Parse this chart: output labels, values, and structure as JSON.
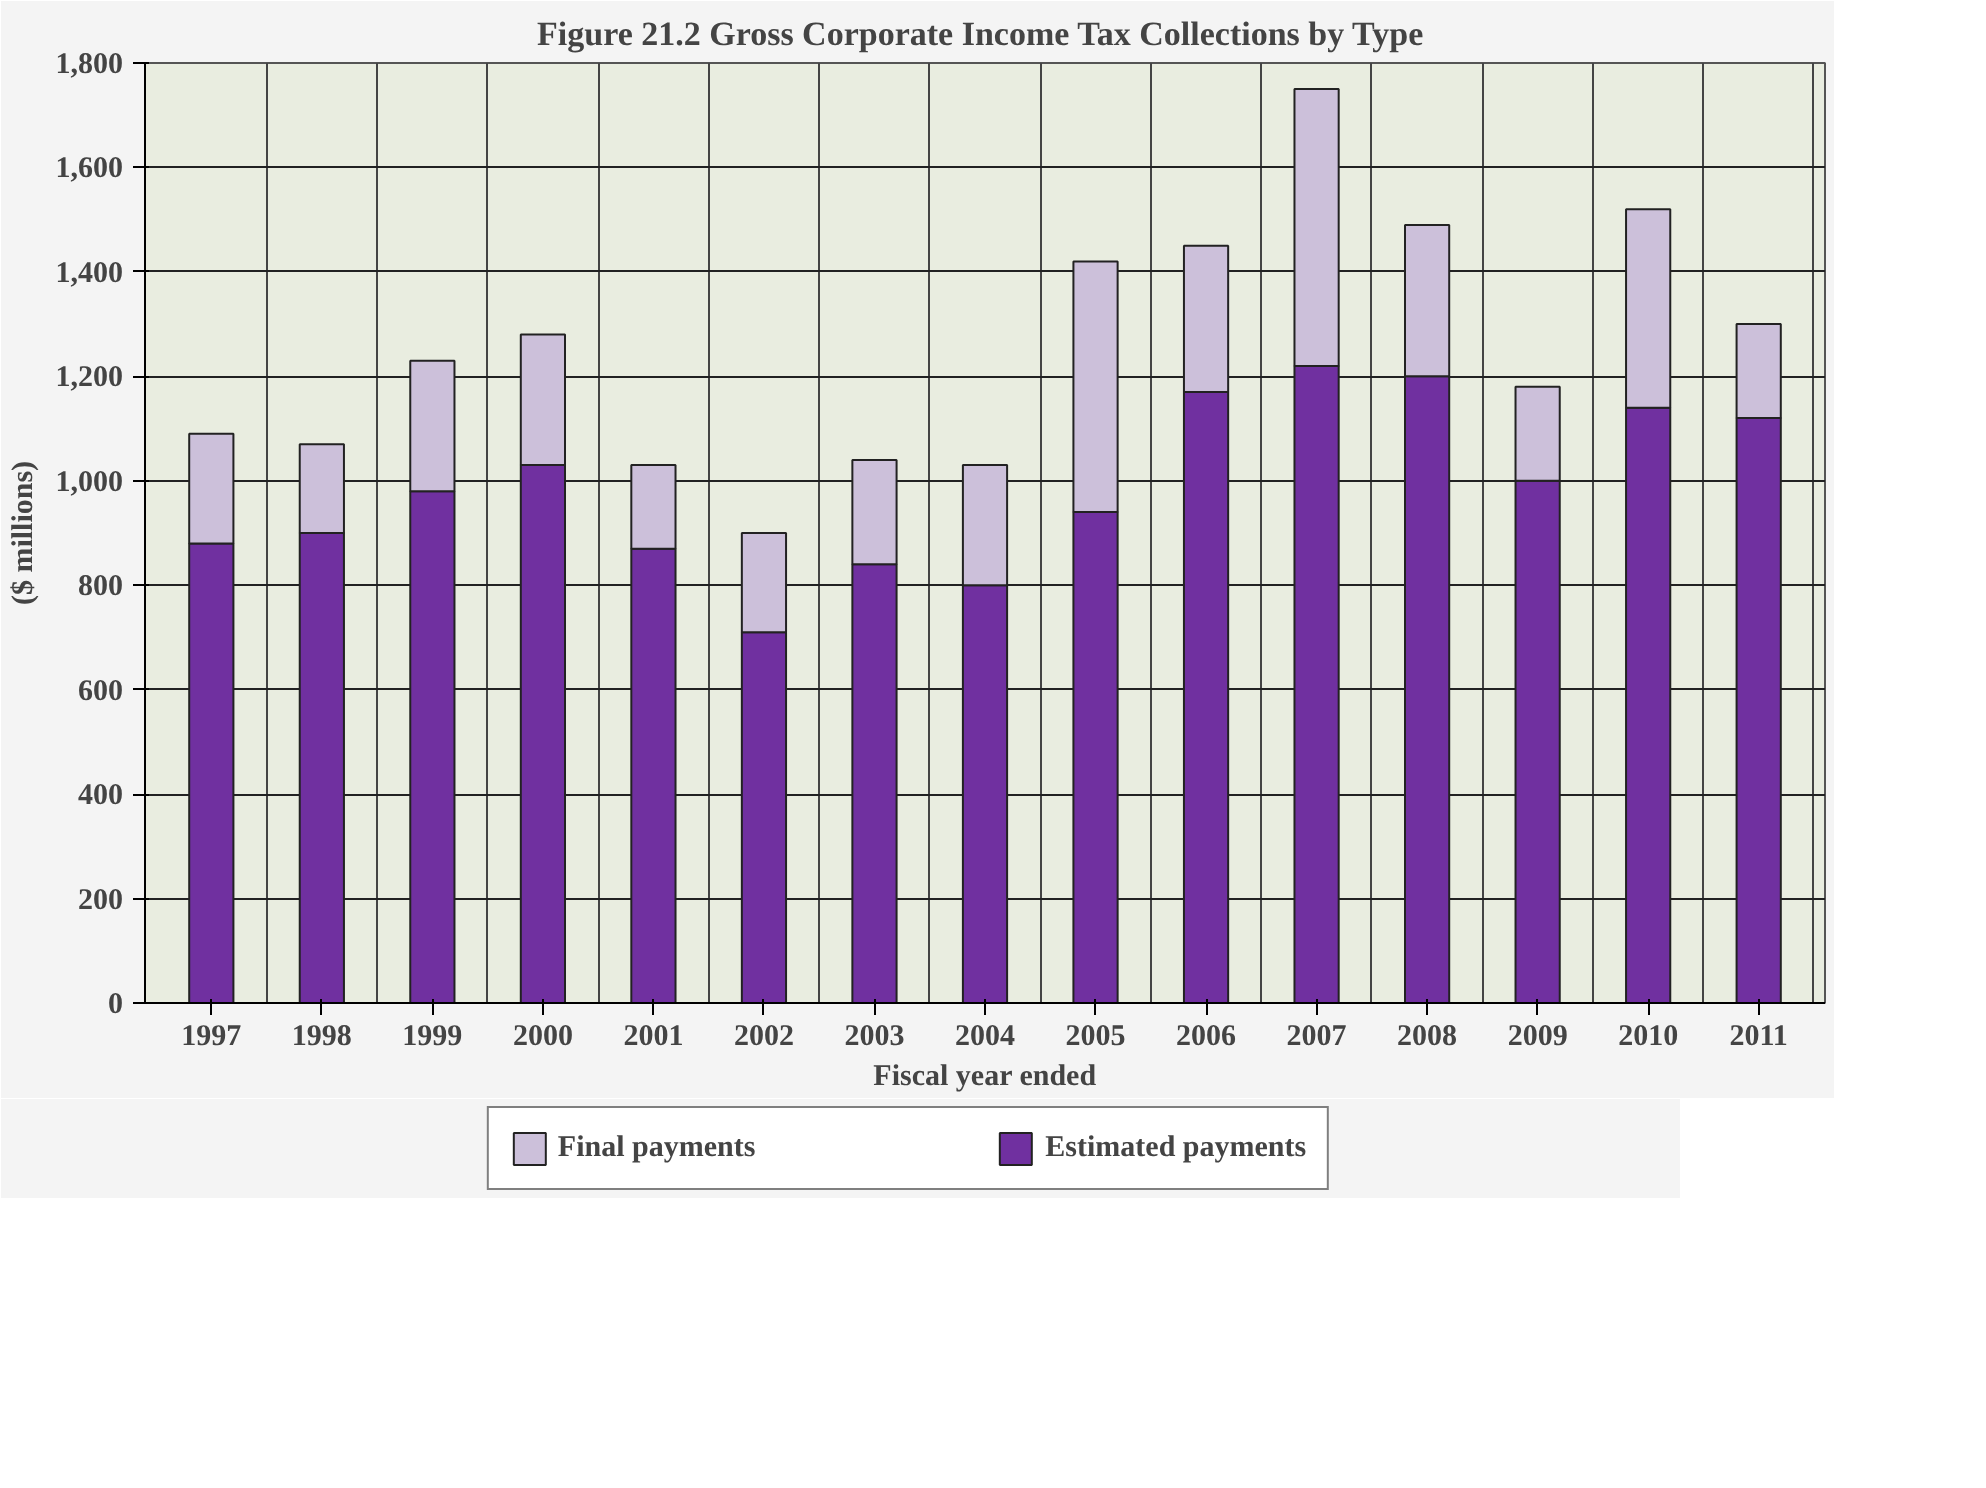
{
  "chart_data": {
    "type": "bar",
    "title": "Figure 21.2  Gross Corporate Income Tax Collections by Type",
    "ylabel": "($ millions)",
    "xlabel": "Fiscal year ended",
    "categories": [
      "1997",
      "1998",
      "1999",
      "2000",
      "2001",
      "2002",
      "2003",
      "2004",
      "2005",
      "2006",
      "2007",
      "2008",
      "2009",
      "2010",
      "2011"
    ],
    "stacked": true,
    "series": [
      {
        "name": "Estimated payments",
        "color": "#7030a0",
        "values": [
          880,
          900,
          980,
          1030,
          870,
          710,
          840,
          800,
          940,
          1170,
          1220,
          1200,
          1000,
          1140,
          1120
        ]
      },
      {
        "name": "Final payments",
        "color": "#ccc0da",
        "values": [
          210,
          170,
          250,
          250,
          160,
          190,
          200,
          230,
          480,
          280,
          530,
          290,
          180,
          380,
          180
        ]
      }
    ],
    "ylim": [
      0,
      1800
    ],
    "yticks": [
      0,
      {
        "value": 200,
        "label": "200"
      },
      {
        "value": 400,
        "label": "400"
      },
      {
        "value": 600,
        "label": "600"
      },
      {
        "value": 800,
        "label": "800"
      },
      {
        "value": 1000,
        "label": "1,000"
      },
      {
        "value": 1200,
        "label": "1,200"
      },
      {
        "value": 1400,
        "label": "1,400"
      },
      {
        "value": 1600,
        "label": "1,600"
      },
      {
        "value": 1800,
        "label": "1,800"
      }
    ],
    "grid": true,
    "legend": "bottom"
  }
}
